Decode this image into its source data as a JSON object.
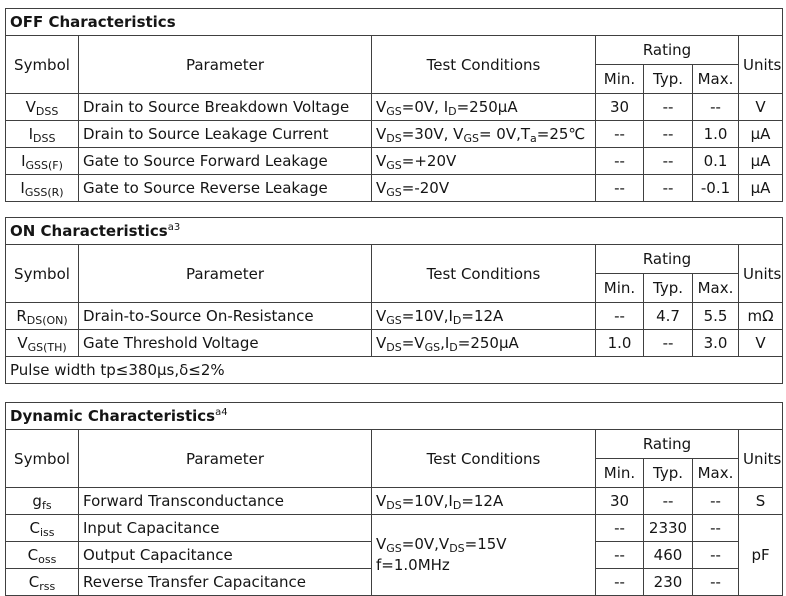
{
  "page": {
    "background": "#ffffff",
    "border_color": "#404040",
    "text_color": "#151515"
  },
  "tables": [
    {
      "title": "OFF Characteristics",
      "title_sup": "",
      "columns": {
        "symbol": "Symbol",
        "parameter": "Parameter",
        "test_conditions": "Test Conditions",
        "rating": "Rating",
        "min": "Min.",
        "typ": "Typ.",
        "max": "Max.",
        "units": "Units"
      },
      "rows": [
        {
          "symbol": "V~DSS~",
          "parameter": "Drain to Source Breakdown Voltage",
          "conditions": "V~GS~=0V, I~D~=250μA",
          "min": "30",
          "typ": "--",
          "max": "--",
          "units": "V"
        },
        {
          "symbol": "I~DSS~",
          "parameter": "Drain to Source Leakage Current",
          "conditions": "V~DS~=30V, V~GS~= 0V,T~a~=25℃",
          "min": "--",
          "typ": "--",
          "max": "1.0",
          "units": "μA"
        },
        {
          "symbol": "I~GSS(F)~",
          "parameter": "Gate to Source Forward Leakage",
          "conditions": "V~GS~=+20V",
          "min": "--",
          "typ": "--",
          "max": "0.1",
          "units": "μA"
        },
        {
          "symbol": "I~GSS(R)~",
          "parameter": "Gate to Source Reverse Leakage",
          "conditions": "V~GS~=-20V",
          "min": "--",
          "typ": "--",
          "max": "-0.1",
          "units": "μA"
        }
      ],
      "footnote": ""
    },
    {
      "title": "ON Characteristics",
      "title_sup": "a3",
      "columns": {
        "symbol": "Symbol",
        "parameter": "Parameter",
        "test_conditions": "Test Conditions",
        "rating": "Rating",
        "min": "Min.",
        "typ": "Typ.",
        "max": "Max.",
        "units": "Units"
      },
      "rows": [
        {
          "symbol": "R~DS(ON)~",
          "parameter": "Drain-to-Source On-Resistance",
          "conditions": "V~GS~=10V,I~D~=12A",
          "min": "--",
          "typ": "4.7",
          "max": "5.5",
          "units": "mΩ"
        },
        {
          "symbol": "V~GS(TH)~",
          "parameter": "Gate Threshold Voltage",
          "conditions": "V~DS~=V~GS~,I~D~=250μA",
          "min": "1.0",
          "typ": "--",
          "max": "3.0",
          "units": "V"
        }
      ],
      "footnote": "Pulse width tp≤380μs,δ≤2%"
    },
    {
      "title": "Dynamic Characteristics",
      "title_sup": "a4",
      "columns": {
        "symbol": "Symbol",
        "parameter": "Parameter",
        "test_conditions": "Test Conditions",
        "rating": "Rating",
        "min": "Min.",
        "typ": "Typ.",
        "max": "Max.",
        "units": "Units"
      },
      "rows": [
        {
          "symbol": "g~fs~",
          "parameter": "Forward Transconductance",
          "conditions": "V~DS~=10V,I~D~=12A",
          "min": "30",
          "typ": "--",
          "max": "--",
          "units": "S"
        },
        {
          "symbol": "C~iss~",
          "parameter": "Input Capacitance",
          "conditions_line1": "V~GS~=0V,V~DS~=15V",
          "conditions_line2": "f=1.0MHz",
          "min": "--",
          "typ": "2330",
          "max": "--",
          "units": "pF"
        },
        {
          "symbol": "C~oss~",
          "parameter": "Output Capacitance",
          "min": "--",
          "typ": "460",
          "max": "--"
        },
        {
          "symbol": "C~rss~",
          "parameter": "Reverse Transfer Capacitance",
          "min": "--",
          "typ": "230",
          "max": "--"
        }
      ],
      "footnote": ""
    }
  ]
}
